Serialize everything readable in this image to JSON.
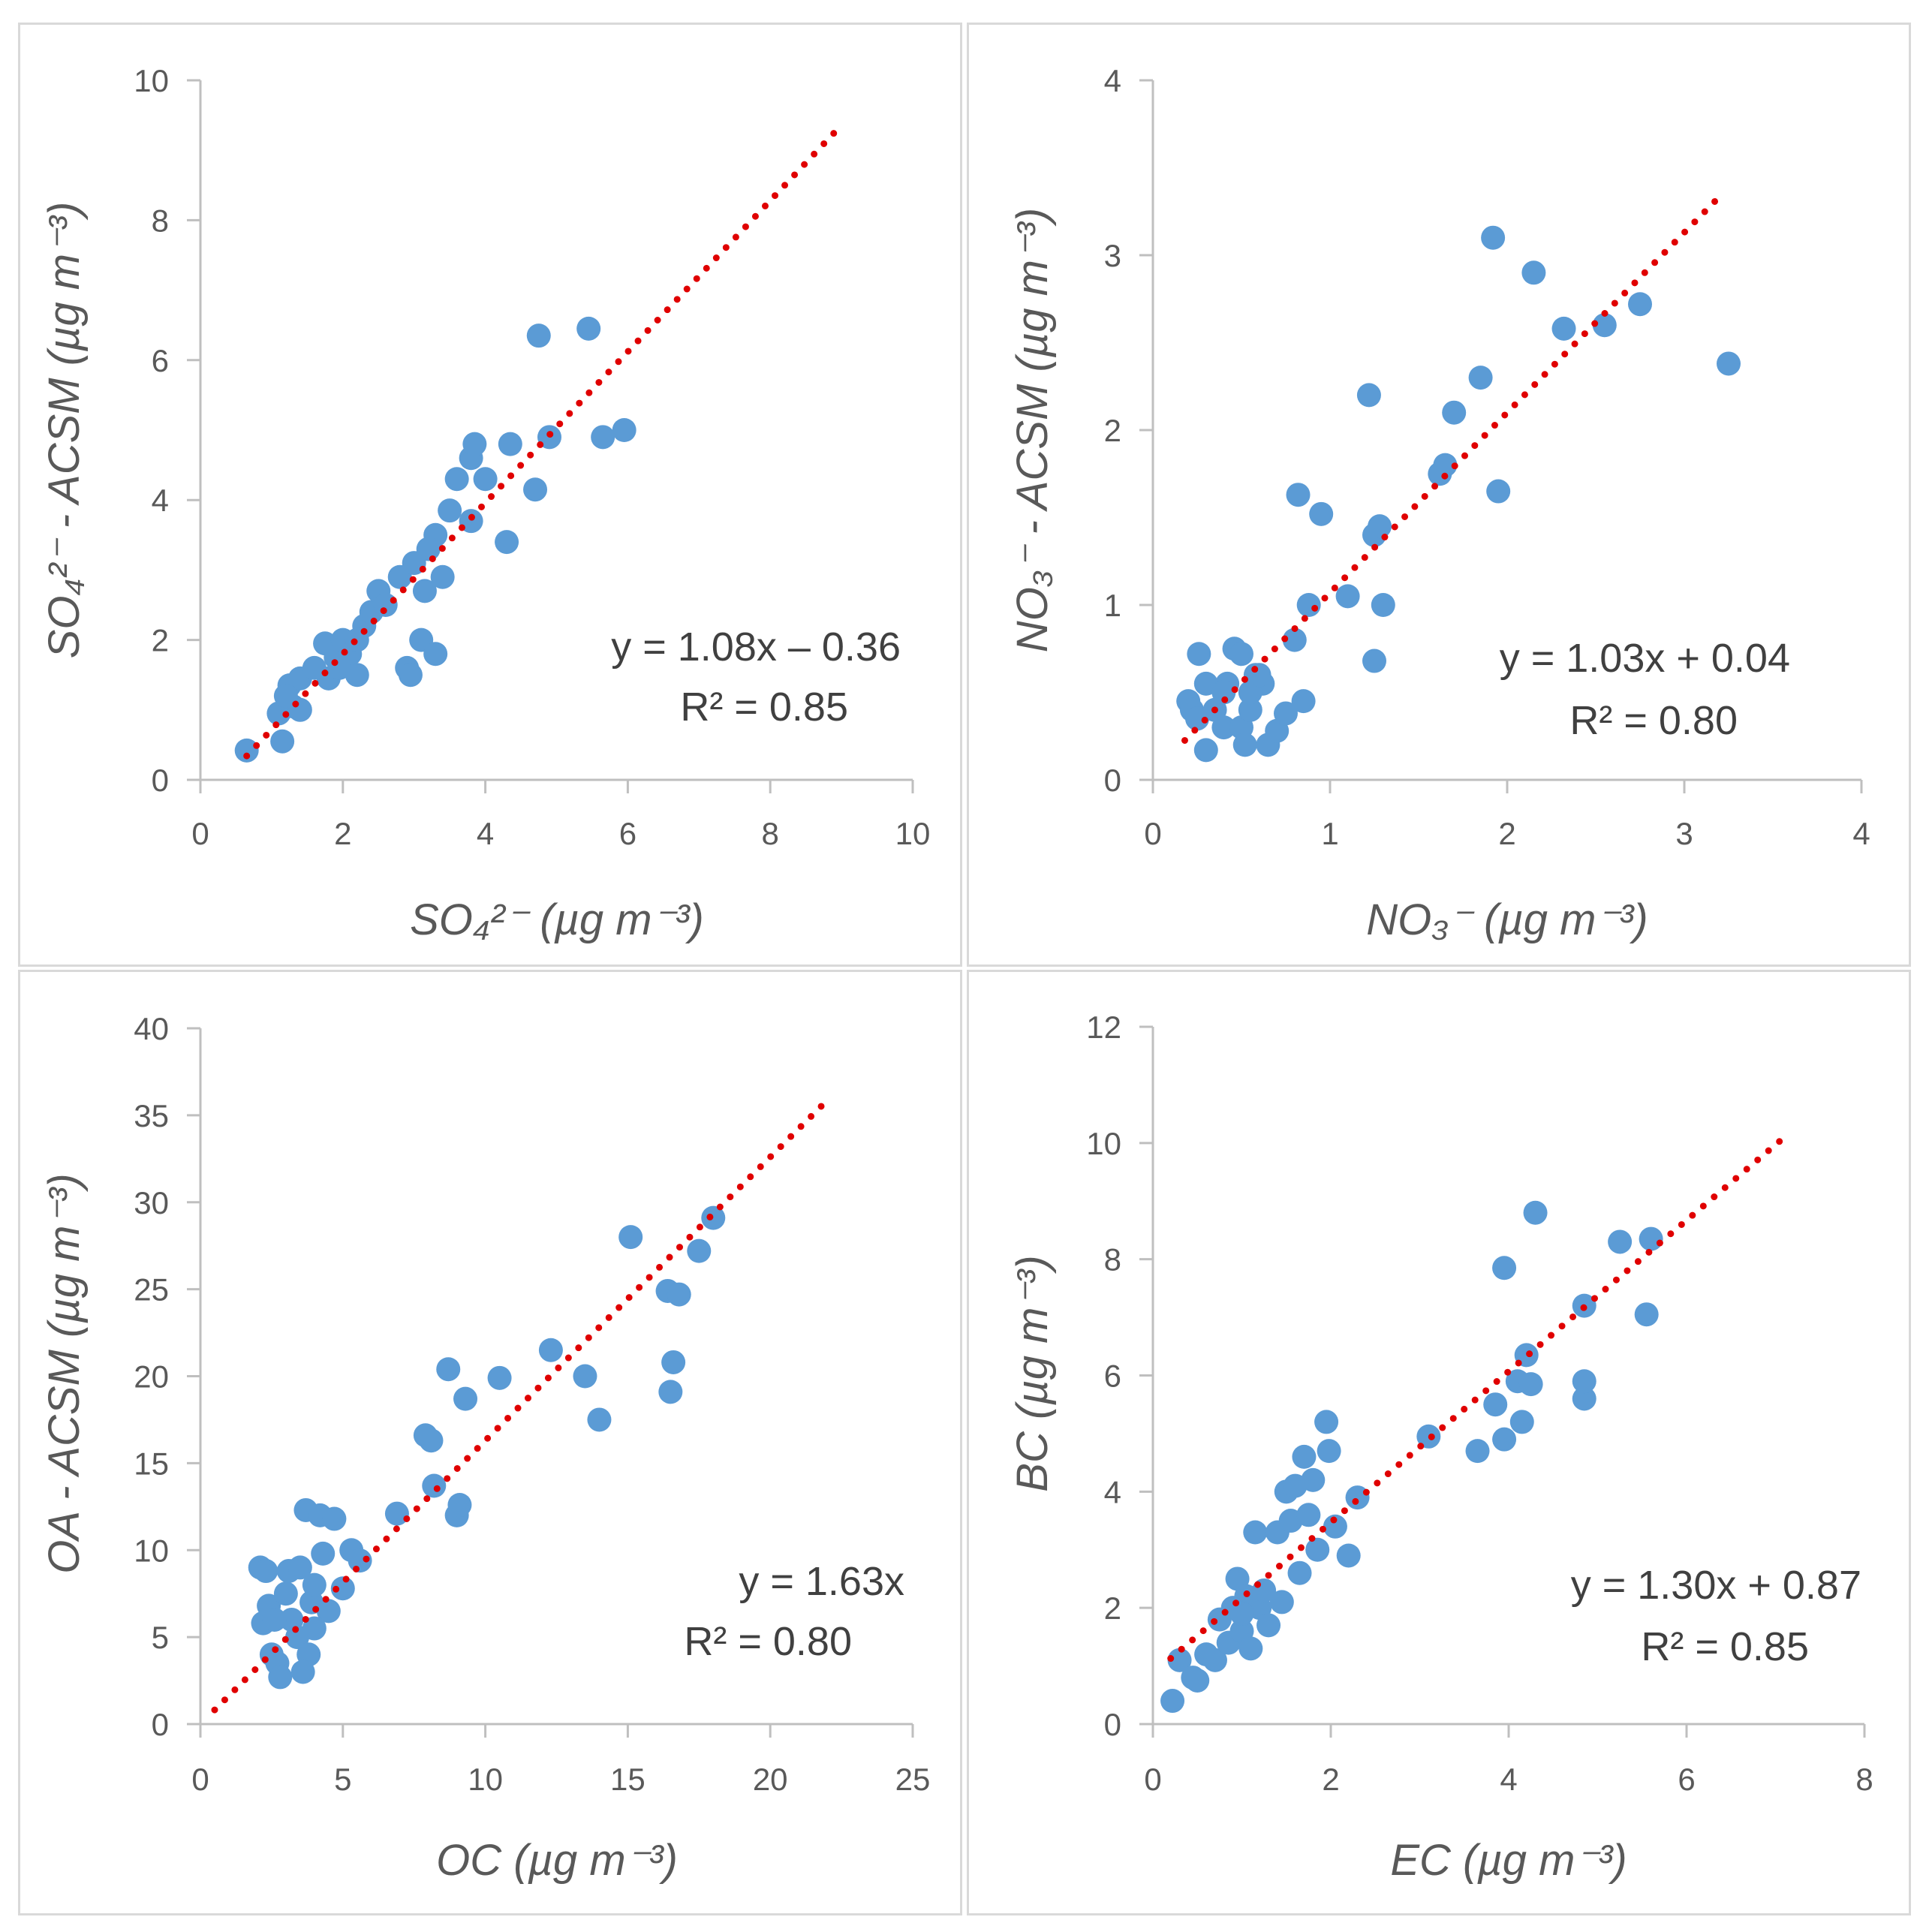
{
  "colors": {
    "point": "#5b9bd5",
    "trend": "#e00000",
    "axis": "#bfbfbf",
    "text": "#595959"
  },
  "chart_data": [
    {
      "type": "scatter",
      "xlabel": "SO₄²⁻ (µg m⁻³)",
      "ylabel": "SO₄²⁻ - ACSM (µg m⁻³)",
      "xlim": [
        0,
        10
      ],
      "ylim": [
        0,
        10
      ],
      "xticks": [
        "0",
        "2",
        "4",
        "6",
        "8",
        "10"
      ],
      "yticks": [
        "0",
        "2",
        "4",
        "6",
        "8",
        "10"
      ],
      "equation": "y = 1.08x – 0.36",
      "r2": "R² = 0.85",
      "trendline": {
        "slope": 1.08,
        "intercept": -0.36,
        "x_range": [
          0.65,
          8.9
        ]
      },
      "points": [
        [
          0.65,
          0.42
        ],
        [
          1.15,
          0.55
        ],
        [
          1.1,
          0.95
        ],
        [
          1.3,
          1.05
        ],
        [
          1.4,
          1.0
        ],
        [
          1.25,
          1.35
        ],
        [
          1.4,
          1.45
        ],
        [
          1.2,
          1.2
        ],
        [
          1.75,
          1.95
        ],
        [
          1.8,
          1.45
        ],
        [
          1.9,
          1.75
        ],
        [
          2.0,
          2.0
        ],
        [
          2.1,
          1.8
        ],
        [
          2.2,
          1.5
        ],
        [
          2.3,
          2.2
        ],
        [
          2.4,
          2.4
        ],
        [
          2.5,
          2.7
        ],
        [
          2.8,
          2.9
        ],
        [
          3.0,
          3.1
        ],
        [
          2.9,
          1.6
        ],
        [
          2.95,
          1.5
        ],
        [
          3.1,
          2.0
        ],
        [
          3.15,
          2.7
        ],
        [
          3.3,
          1.8
        ],
        [
          3.3,
          3.5
        ],
        [
          3.4,
          2.9
        ],
        [
          3.5,
          3.85
        ],
        [
          3.6,
          4.3
        ],
        [
          3.8,
          3.7
        ],
        [
          3.8,
          4.6
        ],
        [
          3.85,
          4.8
        ],
        [
          4.0,
          4.3
        ],
        [
          4.3,
          3.4
        ],
        [
          4.35,
          4.8
        ],
        [
          4.7,
          4.15
        ],
        [
          4.75,
          6.35
        ],
        [
          4.9,
          4.9
        ],
        [
          5.45,
          6.45
        ],
        [
          5.65,
          4.9
        ],
        [
          5.95,
          5.0
        ],
        [
          2.6,
          2.5
        ],
        [
          1.6,
          1.6
        ],
        [
          2.2,
          2.0
        ],
        [
          1.95,
          1.6
        ],
        [
          3.2,
          3.3
        ]
      ]
    },
    {
      "type": "scatter",
      "xlabel": "NO₃⁻ (µg m⁻³)",
      "ylabel": "NO₃⁻ - ACSM (µg m⁻³)",
      "xlim": [
        0,
        4
      ],
      "ylim": [
        0,
        4
      ],
      "xticks": [
        "0",
        "1",
        "2",
        "3",
        "4"
      ],
      "yticks": [
        "0",
        "1",
        "2",
        "3",
        "4"
      ],
      "equation": "y = 1.03x + 0.04",
      "r2": "R² = 0.80",
      "trendline": {
        "slope": 1.03,
        "intercept": 0.04,
        "x_range": [
          0.18,
          3.2
        ]
      },
      "points": [
        [
          0.2,
          0.45
        ],
        [
          0.22,
          0.4
        ],
        [
          0.26,
          0.72
        ],
        [
          0.3,
          0.17
        ],
        [
          0.3,
          0.55
        ],
        [
          0.35,
          0.4
        ],
        [
          0.4,
          0.3
        ],
        [
          0.42,
          0.55
        ],
        [
          0.46,
          0.75
        ],
        [
          0.5,
          0.72
        ],
        [
          0.5,
          0.3
        ],
        [
          0.52,
          0.2
        ],
        [
          0.55,
          0.4
        ],
        [
          0.58,
          0.6
        ],
        [
          0.62,
          0.55
        ],
        [
          0.65,
          0.2
        ],
        [
          0.7,
          0.28
        ],
        [
          0.75,
          0.38
        ],
        [
          0.8,
          0.8
        ],
        [
          0.82,
          1.63
        ],
        [
          0.85,
          0.45
        ],
        [
          0.88,
          1.0
        ],
        [
          0.95,
          1.52
        ],
        [
          1.1,
          1.05
        ],
        [
          1.22,
          2.2
        ],
        [
          1.25,
          1.4
        ],
        [
          1.25,
          0.68
        ],
        [
          1.3,
          1.0
        ],
        [
          1.62,
          1.75
        ],
        [
          1.65,
          1.8
        ],
        [
          1.7,
          2.1
        ],
        [
          1.85,
          2.3
        ],
        [
          1.92,
          3.1
        ],
        [
          1.95,
          1.65
        ],
        [
          2.15,
          2.9
        ],
        [
          2.32,
          2.58
        ],
        [
          2.55,
          2.6
        ],
        [
          2.75,
          2.72
        ],
        [
          3.25,
          2.38
        ],
        [
          0.25,
          0.35
        ],
        [
          0.4,
          0.5
        ],
        [
          0.55,
          0.5
        ],
        [
          0.6,
          0.6
        ],
        [
          1.28,
          1.45
        ]
      ]
    },
    {
      "type": "scatter",
      "xlabel": "OC (µg m⁻³)",
      "ylabel": "OA - ACSM  (µg m⁻³)",
      "xlim": [
        0,
        25
      ],
      "ylim": [
        0,
        40
      ],
      "xticks": [
        "0",
        "5",
        "10",
        "15",
        "20",
        "25"
      ],
      "yticks": [
        "0",
        "5",
        "10",
        "15",
        "20",
        "25",
        "30",
        "35",
        "40"
      ],
      "equation": "y = 1.63x",
      "r2": "R² = 0.80",
      "trendline": {
        "slope": 1.63,
        "intercept": 0,
        "x_range": [
          0.5,
          22.0
        ]
      },
      "points": [
        [
          2.1,
          9.0
        ],
        [
          2.3,
          8.8
        ],
        [
          2.2,
          5.8
        ],
        [
          2.4,
          6.8
        ],
        [
          2.5,
          4.0
        ],
        [
          2.7,
          3.5
        ],
        [
          2.8,
          2.7
        ],
        [
          3.0,
          7.5
        ],
        [
          3.1,
          8.8
        ],
        [
          3.2,
          6.0
        ],
        [
          3.4,
          5.0
        ],
        [
          3.5,
          9.0
        ],
        [
          3.7,
          12.3
        ],
        [
          3.8,
          4.0
        ],
        [
          3.9,
          7.0
        ],
        [
          4.0,
          8.0
        ],
        [
          4.2,
          12.0
        ],
        [
          4.3,
          9.8
        ],
        [
          4.5,
          6.5
        ],
        [
          4.7,
          11.8
        ],
        [
          5.0,
          7.8
        ],
        [
          5.3,
          10.0
        ],
        [
          5.6,
          9.4
        ],
        [
          6.9,
          12.1
        ],
        [
          7.9,
          16.6
        ],
        [
          8.1,
          16.3
        ],
        [
          8.2,
          13.7
        ],
        [
          8.7,
          20.4
        ],
        [
          9.0,
          12.0
        ],
        [
          9.1,
          12.6
        ],
        [
          9.3,
          18.7
        ],
        [
          10.5,
          19.9
        ],
        [
          12.3,
          21.5
        ],
        [
          13.5,
          20.0
        ],
        [
          14.0,
          17.5
        ],
        [
          15.1,
          28.0
        ],
        [
          16.4,
          24.9
        ],
        [
          16.5,
          19.1
        ],
        [
          16.6,
          20.8
        ],
        [
          16.8,
          24.7
        ],
        [
          17.5,
          27.2
        ],
        [
          18.0,
          29.1
        ],
        [
          3.6,
          3.0
        ],
        [
          4.0,
          5.5
        ],
        [
          2.6,
          6.0
        ]
      ]
    },
    {
      "type": "scatter",
      "xlabel": "EC (µg m⁻³)",
      "ylabel": "BC  (µg m⁻³)",
      "xlim": [
        0,
        8
      ],
      "ylim": [
        0,
        12
      ],
      "xticks": [
        "0",
        "2",
        "4",
        "6",
        "8"
      ],
      "yticks": [
        "0",
        "2",
        "4",
        "6",
        "8",
        "10",
        "12"
      ],
      "equation": "y = 1.30x + 0.87",
      "r2": "R² = 0.85",
      "trendline": {
        "slope": 1.3,
        "intercept": 0.87,
        "x_range": [
          0.2,
          7.1
        ]
      },
      "points": [
        [
          0.22,
          0.4
        ],
        [
          0.3,
          1.1
        ],
        [
          0.45,
          0.8
        ],
        [
          0.5,
          0.75
        ],
        [
          0.6,
          1.2
        ],
        [
          0.7,
          1.1
        ],
        [
          0.75,
          1.8
        ],
        [
          0.85,
          1.4
        ],
        [
          0.9,
          2.0
        ],
        [
          0.95,
          2.5
        ],
        [
          1.0,
          1.6
        ],
        [
          1.05,
          2.2
        ],
        [
          1.1,
          1.3
        ],
        [
          1.15,
          3.3
        ],
        [
          1.2,
          2.0
        ],
        [
          1.3,
          1.7
        ],
        [
          1.4,
          3.3
        ],
        [
          1.45,
          2.1
        ],
        [
          1.5,
          4.0
        ],
        [
          1.55,
          3.5
        ],
        [
          1.6,
          4.1
        ],
        [
          1.65,
          2.6
        ],
        [
          1.7,
          4.6
        ],
        [
          1.75,
          3.6
        ],
        [
          1.8,
          4.2
        ],
        [
          1.85,
          3.0
        ],
        [
          1.95,
          5.2
        ],
        [
          1.98,
          4.7
        ],
        [
          2.05,
          3.4
        ],
        [
          2.2,
          2.9
        ],
        [
          2.3,
          3.9
        ],
        [
          3.1,
          4.95
        ],
        [
          3.65,
          4.7
        ],
        [
          3.85,
          5.5
        ],
        [
          3.95,
          4.9
        ],
        [
          3.95,
          7.85
        ],
        [
          4.1,
          5.9
        ],
        [
          4.15,
          5.2
        ],
        [
          4.2,
          6.35
        ],
        [
          4.25,
          5.85
        ],
        [
          4.3,
          8.8
        ],
        [
          4.85,
          5.6
        ],
        [
          4.85,
          5.9
        ],
        [
          4.85,
          7.2
        ],
        [
          5.25,
          8.3
        ],
        [
          5.55,
          7.05
        ],
        [
          5.6,
          8.35
        ],
        [
          1.0,
          1.9
        ],
        [
          1.25,
          2.3
        ]
      ]
    }
  ]
}
